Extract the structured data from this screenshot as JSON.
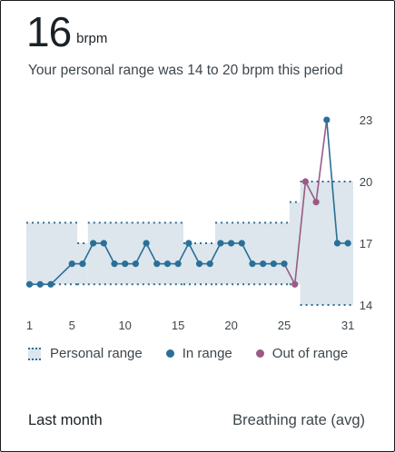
{
  "header": {
    "value": "16",
    "unit": "brpm",
    "subtitle": "Your personal range was 14 to 20 brpm this period"
  },
  "legend": {
    "personal_range": "Personal range",
    "in_range": "In range",
    "out_of_range": "Out of range"
  },
  "footer": {
    "period": "Last month",
    "metric": "Breathing rate (avg)"
  },
  "colors": {
    "in_range": "#2a6f97",
    "out_of_range": "#9a5a84",
    "range_fill": "#dce6ec",
    "range_border": "#2f6f95"
  },
  "chart_data": {
    "type": "line",
    "x_ticks": [
      1,
      5,
      10,
      15,
      20,
      25,
      31
    ],
    "y_ticks": [
      14,
      17,
      20,
      23
    ],
    "ylim": [
      13.6,
      23.4
    ],
    "xlim": [
      0.7,
      31.5
    ],
    "x": [
      1,
      2,
      3,
      4,
      5,
      6,
      7,
      8,
      9,
      10,
      11,
      12,
      13,
      14,
      15,
      16,
      17,
      18,
      19,
      20,
      21,
      22,
      23,
      24,
      25,
      26,
      27,
      28,
      29,
      30,
      31
    ],
    "values": [
      15,
      15,
      15,
      15.5,
      16,
      16,
      17,
      17,
      16,
      16,
      16,
      17,
      16,
      16,
      16,
      17,
      16,
      16,
      17,
      17,
      17,
      16,
      16,
      16,
      16,
      15,
      20,
      19,
      23,
      17,
      17
    ],
    "out_of_range_days": [
      26,
      27,
      28
    ],
    "personal_range": [
      {
        "from": 0.7,
        "to": 5.5,
        "low": 15,
        "high": 18
      },
      {
        "from": 5.5,
        "to": 6.5,
        "low": 15,
        "high": 17
      },
      {
        "from": 6.5,
        "to": 15.5,
        "low": 15,
        "high": 18
      },
      {
        "from": 15.5,
        "to": 18.5,
        "low": 15,
        "high": 17
      },
      {
        "from": 18.5,
        "to": 25.5,
        "low": 15,
        "high": 18
      },
      {
        "from": 25.5,
        "to": 26.5,
        "low": 15,
        "high": 19
      },
      {
        "from": 26.5,
        "to": 31.5,
        "low": 14,
        "high": 20
      }
    ]
  }
}
